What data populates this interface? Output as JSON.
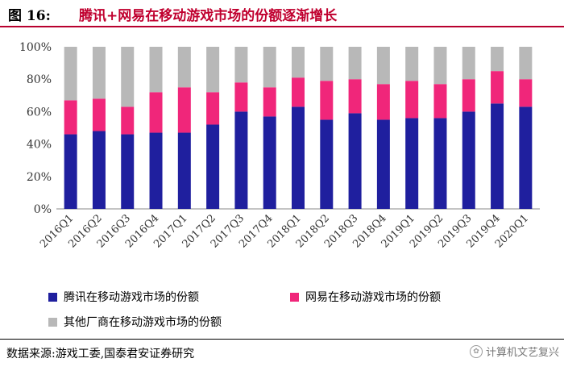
{
  "header": {
    "figure_label": "图 16:",
    "title": "腾讯+网易在移动游戏市场的份额逐渐增长"
  },
  "chart_data": {
    "type": "bar",
    "stacked": true,
    "categories": [
      "2016Q1",
      "2016Q2",
      "2016Q3",
      "2016Q4",
      "2017Q1",
      "2017Q2",
      "2017Q3",
      "2017Q4",
      "2018Q1",
      "2018Q2",
      "2018Q3",
      "2018Q4",
      "2019Q1",
      "2019Q2",
      "2019Q3",
      "2019Q4",
      "2020Q1"
    ],
    "series": [
      {
        "name": "腾讯在移动游戏市场的份额",
        "color": "#1f1f9e",
        "values": [
          46,
          48,
          46,
          47,
          47,
          52,
          60,
          57,
          63,
          55,
          59,
          55,
          56,
          56,
          60,
          65,
          63
        ]
      },
      {
        "name": "网易在移动游戏市场的份额",
        "color": "#f0267a",
        "values": [
          21,
          20,
          17,
          25,
          28,
          20,
          18,
          18,
          18,
          24,
          21,
          22,
          23,
          21,
          20,
          20,
          17
        ]
      },
      {
        "name": "其他厂商在移动游戏市场的份额",
        "color": "#b8b8b8",
        "values": [
          33,
          32,
          37,
          28,
          25,
          28,
          22,
          25,
          19,
          21,
          20,
          23,
          21,
          23,
          20,
          15,
          20
        ]
      }
    ],
    "yticks": [
      "0%",
      "20%",
      "40%",
      "60%",
      "80%",
      "100%"
    ],
    "ylim": [
      0,
      100
    ],
    "legend_position": "bottom"
  },
  "footer": {
    "source": "数据来源:游戏工委,国泰君安证券研究",
    "watermark": "计算机文艺复兴"
  }
}
